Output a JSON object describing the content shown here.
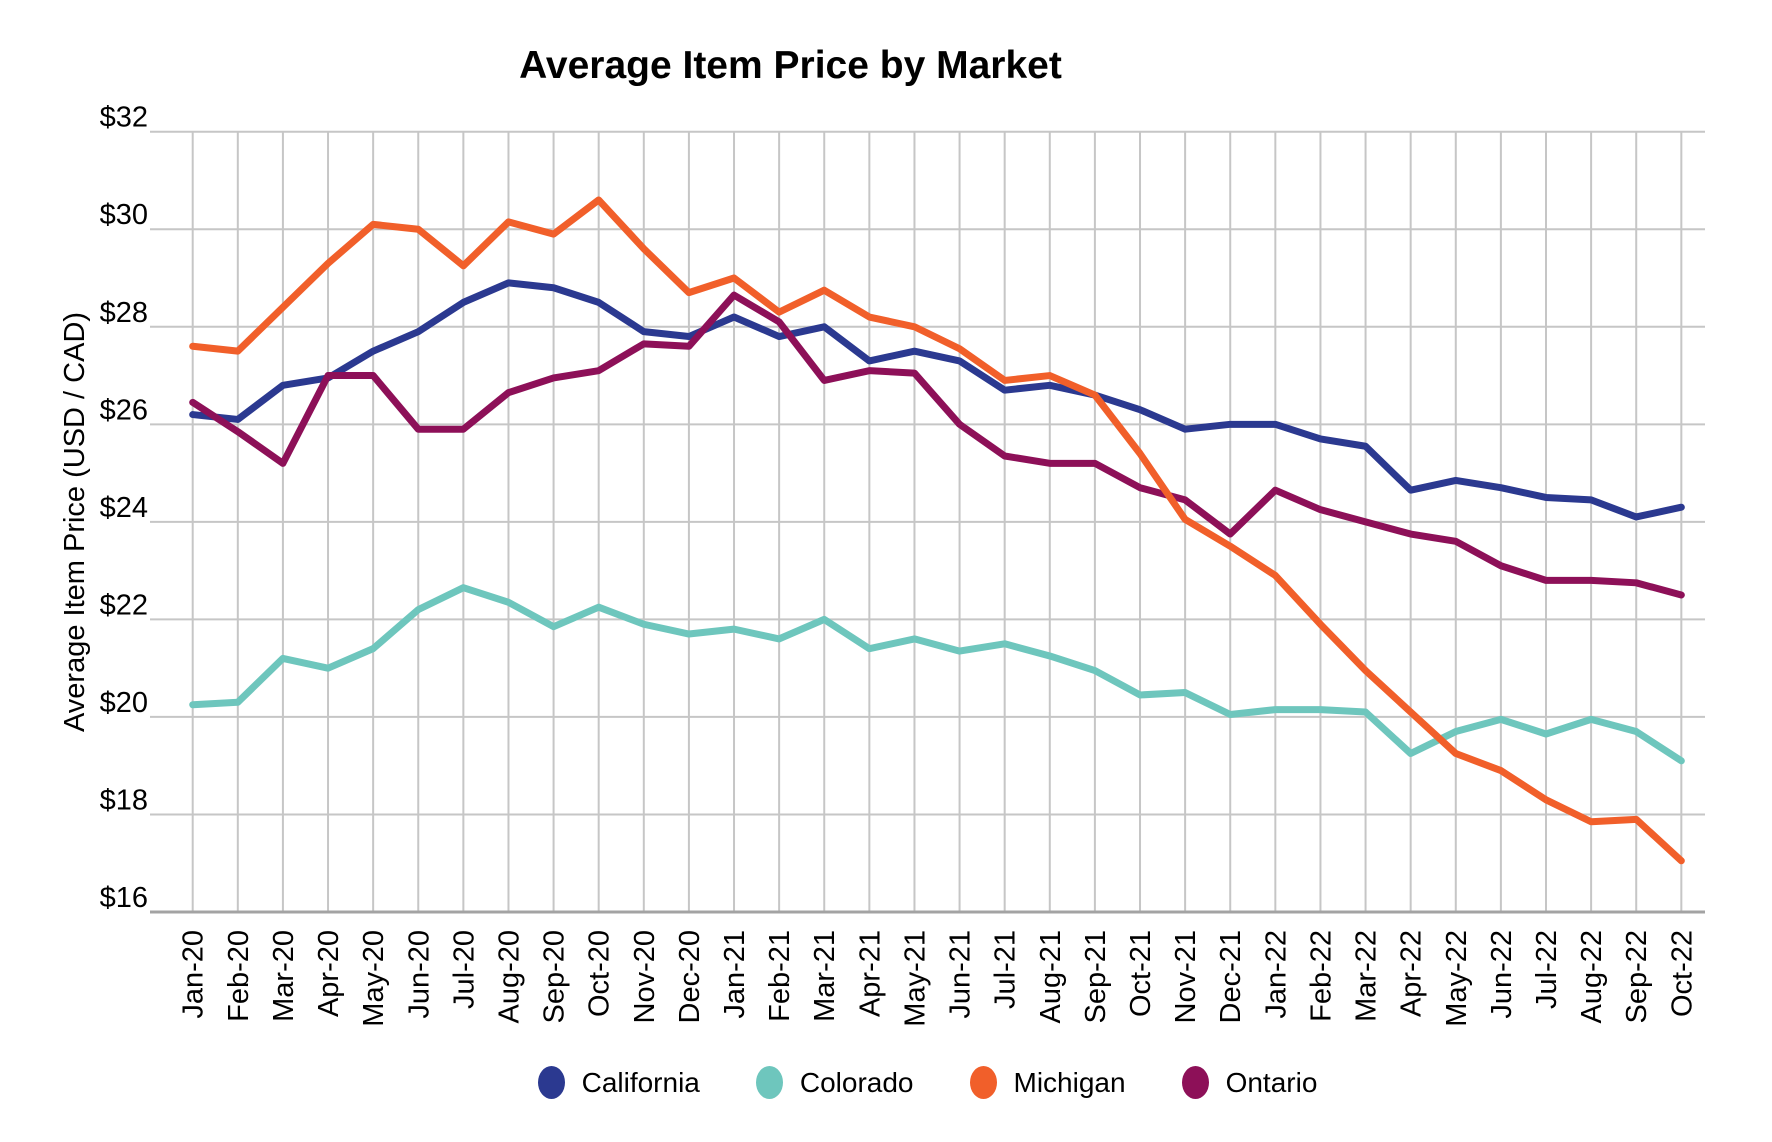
{
  "chart_data": {
    "type": "line",
    "title": "Average Item Price by Market",
    "ylabel": "Average Item Price (USD / CAD)",
    "ylim": [
      16,
      32
    ],
    "grid": true,
    "legend_position": "bottom",
    "y_ticks": [
      {
        "label": "$16",
        "value": 16
      },
      {
        "label": "$18",
        "value": 18
      },
      {
        "label": "$20",
        "value": 20
      },
      {
        "label": "$22",
        "value": 22
      },
      {
        "label": "$24",
        "value": 24
      },
      {
        "label": "$26",
        "value": 26
      },
      {
        "label": "$28",
        "value": 28
      },
      {
        "label": "$30",
        "value": 30
      },
      {
        "label": "$32",
        "value": 32
      }
    ],
    "x": [
      "Jan-20",
      "Feb-20",
      "Mar-20",
      "Apr-20",
      "May-20",
      "Jun-20",
      "Jul-20",
      "Aug-20",
      "Sep-20",
      "Oct-20",
      "Nov-20",
      "Dec-20",
      "Jan-21",
      "Feb-21",
      "Mar-21",
      "Apr-21",
      "May-21",
      "Jun-21",
      "Jul-21",
      "Aug-21",
      "Sep-21",
      "Oct-21",
      "Nov-21",
      "Dec-21",
      "Jan-22",
      "Feb-22",
      "Mar-22",
      "Apr-22",
      "May-22",
      "Jun-22",
      "Jul-22",
      "Aug-22",
      "Sep-22",
      "Oct-22"
    ],
    "series": [
      {
        "name": "California",
        "color": "#2B3990",
        "values": [
          26.2,
          26.1,
          26.8,
          26.95,
          27.5,
          27.9,
          28.5,
          28.9,
          28.8,
          28.5,
          27.9,
          27.8,
          28.2,
          27.8,
          28.0,
          27.3,
          27.5,
          27.3,
          26.7,
          26.8,
          26.6,
          26.3,
          25.9,
          26.0,
          26.0,
          25.7,
          25.55,
          24.65,
          24.85,
          24.7,
          24.5,
          24.45,
          24.1,
          24.3
        ]
      },
      {
        "name": "Colorado",
        "color": "#6EC6BD",
        "values": [
          20.25,
          20.3,
          21.2,
          21.0,
          21.4,
          22.2,
          22.65,
          22.35,
          21.85,
          22.25,
          21.9,
          21.7,
          21.8,
          21.6,
          22.0,
          21.4,
          21.6,
          21.35,
          21.5,
          21.25,
          20.95,
          20.45,
          20.5,
          20.05,
          20.15,
          20.15,
          20.1,
          19.25,
          19.7,
          19.95,
          19.65,
          19.95,
          19.7,
          19.1
        ]
      },
      {
        "name": "Michigan",
        "color": "#F15F2A",
        "values": [
          27.6,
          27.5,
          28.4,
          29.3,
          30.1,
          30.0,
          29.25,
          30.15,
          29.9,
          30.6,
          29.6,
          28.7,
          29.0,
          28.3,
          28.75,
          28.2,
          28.0,
          27.55,
          26.9,
          27.0,
          26.6,
          25.4,
          24.05,
          23.5,
          22.9,
          21.9,
          20.95,
          20.1,
          19.25,
          18.9,
          18.3,
          17.85,
          17.9,
          17.05
        ]
      },
      {
        "name": "Ontario",
        "color": "#8D1058",
        "values": [
          26.45,
          25.85,
          25.2,
          27.0,
          27.0,
          25.9,
          25.9,
          26.65,
          26.95,
          27.1,
          27.65,
          27.6,
          28.65,
          28.1,
          26.9,
          27.1,
          27.05,
          26.0,
          25.35,
          25.2,
          25.2,
          24.7,
          24.45,
          23.75,
          24.65,
          24.25,
          24.0,
          23.75,
          23.6,
          23.1,
          22.8,
          22.8,
          22.75,
          22.5
        ]
      }
    ],
    "style": {
      "gridline_color": "#C6C6C6",
      "axis_line_color": "#A3A3A3",
      "tick_label_color": "#000000",
      "background": "#FFFFFF"
    }
  }
}
